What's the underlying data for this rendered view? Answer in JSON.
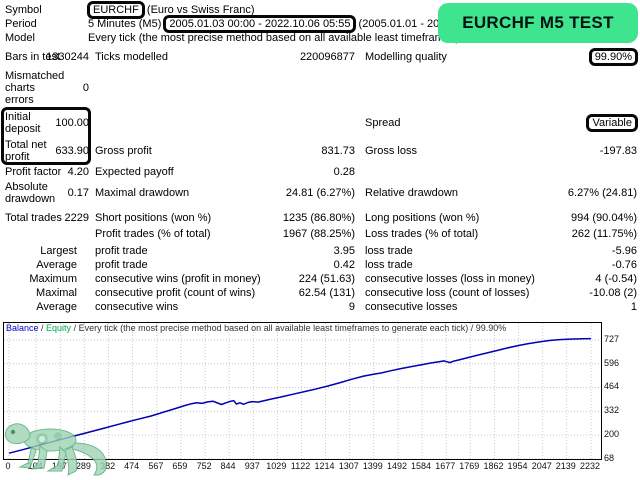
{
  "header": {
    "badge_label": "EURCHF M5 TEST",
    "badge_color": "#3ee58e"
  },
  "info": {
    "symbol_label": "Symbol",
    "symbol_value": "EURCHF",
    "symbol_desc": "(Euro vs Swiss Franc)",
    "period_label": "Period",
    "period_timeframe": "5 Minutes (M5)",
    "period_tested": "2005.01.03 00:00 - 2022.10.06 05:55",
    "period_full": "(2005.01.01 - 2023.01.01)",
    "model_label": "Model",
    "model_value": "Every tick (the most precise method based on all available least timeframes)",
    "bars_label": "Bars in test",
    "bars_value": "1330244",
    "ticks_label": "Ticks modelled",
    "ticks_value": "220096877",
    "quality_label": "Modelling quality",
    "quality_value": "99.90%",
    "mismatch_label": "Mismatched charts errors",
    "mismatch_value": "0"
  },
  "stats": {
    "initial_deposit_label": "Initial deposit",
    "initial_deposit": "100.00",
    "spread_label": "Spread",
    "spread": "Variable",
    "total_net_profit_label": "Total net profit",
    "total_net_profit": "633.90",
    "gross_profit_label": "Gross profit",
    "gross_profit": "831.73",
    "gross_loss_label": "Gross loss",
    "gross_loss": "-197.83",
    "profit_factor_label": "Profit factor",
    "profit_factor": "4.20",
    "expected_payoff_label": "Expected payoff",
    "expected_payoff": "0.28",
    "absolute_drawdown_label": "Absolute drawdown",
    "absolute_drawdown": "0.17",
    "maximal_drawdown_label": "Maximal drawdown",
    "maximal_drawdown": "24.81 (6.27%)",
    "relative_drawdown_label": "Relative drawdown",
    "relative_drawdown": "6.27% (24.81)",
    "total_trades_label": "Total trades",
    "total_trades": "2229",
    "short_positions_label": "Short positions (won %)",
    "short_positions": "1235 (86.80%)",
    "long_positions_label": "Long positions (won %)",
    "long_positions": "994 (90.04%)",
    "profit_trades_label": "Profit trades (% of total)",
    "profit_trades": "1967 (88.25%)",
    "loss_trades_label": "Loss trades (% of total)",
    "loss_trades": "262 (11.75%)",
    "largest_label": "Largest",
    "largest_profit_label": "profit trade",
    "largest_profit": "3.95",
    "largest_loss_label": "loss trade",
    "largest_loss": "-5.96",
    "average_label": "Average",
    "average_profit_label": "profit trade",
    "average_profit": "0.42",
    "average_loss_label": "loss trade",
    "average_loss": "-0.76",
    "maximum_label": "Maximum",
    "max_cons_wins_label": "consecutive wins (profit in money)",
    "max_cons_wins": "224 (51.63)",
    "max_cons_losses_label": "consecutive losses (loss in money)",
    "max_cons_losses": "4 (-0.54)",
    "maximal_label": "Maximal",
    "max_cons_profit_label": "consecutive profit (count of wins)",
    "max_cons_profit": "62.54 (131)",
    "max_cons_loss_label": "consecutive loss (count of losses)",
    "max_cons_loss": "-10.08 (2)",
    "avg_cons_label": "Average",
    "avg_cons_wins_label": "consecutive wins",
    "avg_cons_wins": "9",
    "avg_cons_losses_label": "consecutive losses",
    "avg_cons_losses": "1"
  },
  "chart_data": {
    "type": "line",
    "title_parts": {
      "balance": "Balance",
      "sep1": " / ",
      "equity": "Equity",
      "rest": " / Every tick (the most precise method based on all available least timeframes to generate each tick) / 99.90%"
    },
    "legend_position": "top-left",
    "grid": true,
    "line_color": "#0000b4",
    "grid_color": "#c8c8c8",
    "xlim": [
      0,
      2232
    ],
    "ylim": [
      68,
      740
    ],
    "xticks": [
      0,
      104,
      197,
      289,
      382,
      474,
      567,
      659,
      752,
      844,
      937,
      1029,
      1122,
      1214,
      1307,
      1399,
      1492,
      1584,
      1677,
      1769,
      1862,
      1954,
      2047,
      2139,
      2232
    ],
    "yticks": [
      68,
      200,
      332,
      464,
      596,
      727
    ],
    "series": [
      {
        "name": "Balance",
        "points": [
          [
            0,
            100
          ],
          [
            60,
            122
          ],
          [
            120,
            146
          ],
          [
            180,
            169
          ],
          [
            240,
            192
          ],
          [
            300,
            214
          ],
          [
            360,
            237
          ],
          [
            420,
            260
          ],
          [
            480,
            283
          ],
          [
            545,
            306
          ],
          [
            590,
            326
          ],
          [
            640,
            348
          ],
          [
            675,
            364
          ],
          [
            700,
            374
          ],
          [
            720,
            379
          ],
          [
            740,
            376
          ],
          [
            762,
            384
          ],
          [
            782,
            388
          ],
          [
            800,
            378
          ],
          [
            815,
            370
          ],
          [
            832,
            379
          ],
          [
            848,
            387
          ],
          [
            862,
            391
          ],
          [
            872,
            372
          ],
          [
            886,
            379
          ],
          [
            900,
            371
          ],
          [
            916,
            381
          ],
          [
            932,
            386
          ],
          [
            955,
            383
          ],
          [
            1000,
            398
          ],
          [
            1045,
            412
          ],
          [
            1090,
            427
          ],
          [
            1135,
            442
          ],
          [
            1180,
            457
          ],
          [
            1225,
            473
          ],
          [
            1270,
            491
          ],
          [
            1315,
            510
          ],
          [
            1360,
            527
          ],
          [
            1400,
            538
          ],
          [
            1427,
            544
          ],
          [
            1465,
            557
          ],
          [
            1505,
            569
          ],
          [
            1545,
            580
          ],
          [
            1585,
            591
          ],
          [
            1620,
            600
          ],
          [
            1650,
            607
          ],
          [
            1668,
            611
          ],
          [
            1680,
            606
          ],
          [
            1692,
            602
          ],
          [
            1706,
            610
          ],
          [
            1726,
            617
          ],
          [
            1756,
            628
          ],
          [
            1792,
            641
          ],
          [
            1832,
            655
          ],
          [
            1872,
            669
          ],
          [
            1912,
            683
          ],
          [
            1952,
            696
          ],
          [
            1992,
            707
          ],
          [
            2032,
            716
          ],
          [
            2072,
            724
          ],
          [
            2112,
            729
          ],
          [
            2152,
            732
          ],
          [
            2200,
            734
          ],
          [
            2232,
            735
          ]
        ]
      }
    ]
  }
}
